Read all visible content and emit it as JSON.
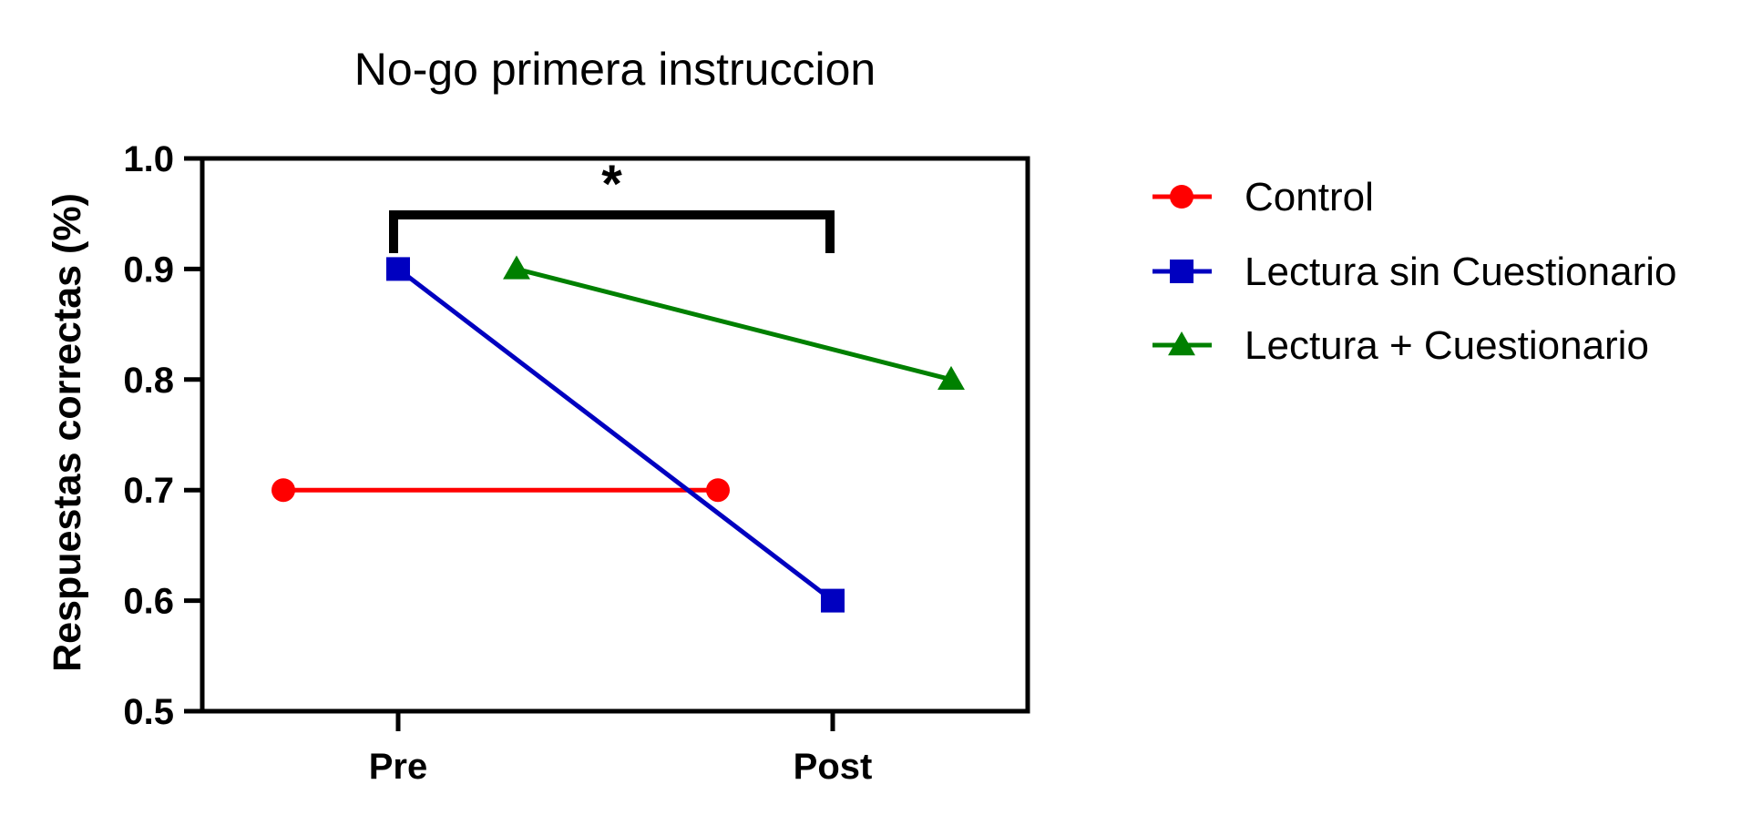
{
  "chart_data": {
    "type": "line",
    "title": "No-go primera instruccion",
    "xlabel": "",
    "ylabel": "Respuestas correctas (%)",
    "categories": [
      "Pre",
      "Post"
    ],
    "ylim": [
      0.5,
      1.0
    ],
    "yticks": [
      "0.5",
      "0.6",
      "0.7",
      "0.8",
      "0.9",
      "1.0"
    ],
    "legend_position": "right",
    "grid": false,
    "series": [
      {
        "name": "Control",
        "values": [
          0.7,
          0.7
        ],
        "color": "#ff0000",
        "marker": "circle"
      },
      {
        "name": "Lectura sin Cuestionario",
        "values": [
          0.9,
          0.6
        ],
        "color": "#0000c0",
        "marker": "square"
      },
      {
        "name": "Lectura + Cuestionario",
        "values": [
          0.9,
          0.8
        ],
        "color": "#008000",
        "marker": "triangle"
      }
    ],
    "annotations": [
      {
        "type": "significance-bracket",
        "text": "*",
        "from": "Pre",
        "to": "Post"
      }
    ]
  }
}
